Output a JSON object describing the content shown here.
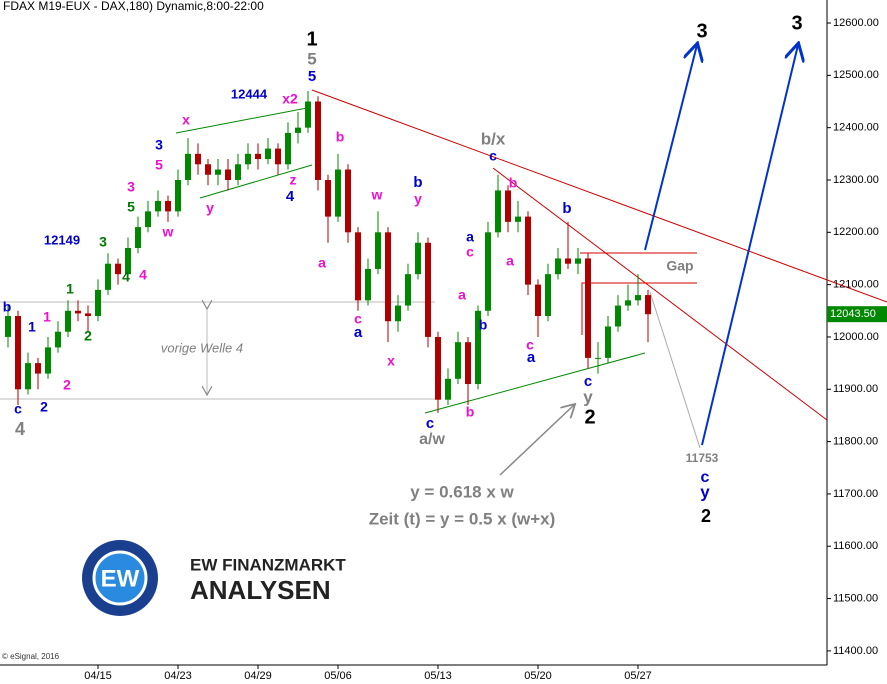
{
  "chart_data": {
    "type": "candlestick",
    "title": "FDAX M19-EUX - DAX,180) Dynamic,8:00-22:00",
    "categories": [
      null,
      null,
      null,
      null,
      null,
      null,
      null,
      null,
      null,
      "04/15",
      null,
      null,
      null,
      null,
      null,
      null,
      null,
      "04/23",
      null,
      null,
      null,
      null,
      null,
      null,
      null,
      "04/29",
      null,
      null,
      null,
      null,
      null,
      null,
      null,
      "05/06",
      null,
      null,
      null,
      null,
      null,
      null,
      null,
      null,
      null,
      "05/13",
      null,
      null,
      null,
      null,
      null,
      null,
      null,
      null,
      null,
      "05/20",
      null,
      null,
      null,
      null,
      null,
      null,
      null,
      null,
      null,
      "05/27",
      null
    ],
    "open": [
      12000,
      12040,
      11900,
      11950,
      11930,
      11980,
      12010,
      12050,
      12045,
      12040,
      12090,
      12140,
      12120,
      12170,
      12210,
      12240,
      12260,
      12240,
      12300,
      12350,
      12330,
      12310,
      12320,
      12300,
      12330,
      12350,
      12340,
      12360,
      12330,
      12390,
      12400,
      12450,
      12300,
      12230,
      12320,
      12200,
      12070,
      12130,
      12200,
      12030,
      12060,
      12120,
      12180,
      12000,
      11880,
      11920,
      11990,
      11910,
      12050,
      12200,
      12280,
      12220,
      12230,
      12100,
      12040,
      12120,
      12150,
      12140,
      12150,
      11960,
      11960,
      12020,
      12060,
      12070,
      12080
    ],
    "high": [
      12060,
      12050,
      11970,
      11960,
      12000,
      12030,
      12070,
      12070,
      12060,
      12110,
      12160,
      12150,
      12190,
      12230,
      12260,
      12280,
      12270,
      12320,
      12380,
      12370,
      12340,
      12340,
      12340,
      12350,
      12370,
      12370,
      12380,
      12370,
      12410,
      12430,
      12470,
      12460,
      12310,
      12350,
      12330,
      12210,
      12150,
      12240,
      12210,
      12080,
      12140,
      12200,
      12190,
      12010,
      11940,
      12010,
      12000,
      12060,
      12220,
      12310,
      12290,
      12260,
      12240,
      12110,
      12140,
      12170,
      12220,
      12170,
      12160,
      11990,
      12040,
      12080,
      12100,
      12120,
      12090
    ],
    "low": [
      11980,
      11870,
      11890,
      11900,
      11920,
      11970,
      12000,
      12030,
      12010,
      12030,
      12080,
      12100,
      12110,
      12160,
      12200,
      12230,
      12220,
      12230,
      12290,
      12310,
      12290,
      12290,
      12280,
      12290,
      12320,
      12320,
      12330,
      12310,
      12320,
      12370,
      12390,
      12280,
      12180,
      12220,
      12180,
      12050,
      12060,
      12120,
      11990,
      12010,
      12050,
      12110,
      11980,
      11855,
      11870,
      11910,
      11870,
      11900,
      12040,
      12190,
      12200,
      12200,
      12080,
      12000,
      12030,
      12110,
      12130,
      12120,
      11940,
      11930,
      11950,
      12010,
      12050,
      12060,
      11990
    ],
    "close": [
      12040,
      11900,
      11950,
      11930,
      11980,
      12010,
      12050,
      12045,
      12040,
      12090,
      12140,
      12120,
      12170,
      12210,
      12240,
      12260,
      12240,
      12300,
      12350,
      12330,
      12310,
      12320,
      12300,
      12330,
      12350,
      12340,
      12360,
      12330,
      12390,
      12400,
      12450,
      12300,
      12230,
      12320,
      12200,
      12070,
      12130,
      12200,
      12030,
      12060,
      12120,
      12180,
      12000,
      11880,
      11920,
      11990,
      11910,
      12050,
      12200,
      12280,
      12220,
      12230,
      12100,
      12040,
      12120,
      12150,
      12140,
      12150,
      11960,
      11960,
      12020,
      12060,
      12070,
      12080,
      12043.5
    ],
    "last_label": "12043.50",
    "up_color": "#008800",
    "down_color": "#b00000",
    "ylim": [
      11373,
      12644
    ],
    "yticks": [
      {
        "value": 11400,
        "label": "11400.00"
      },
      {
        "value": 11500,
        "label": "11500.00"
      },
      {
        "value": 11600,
        "label": "11600.00"
      },
      {
        "value": 11700,
        "label": "11700.00"
      },
      {
        "value": 11800,
        "label": "11800.00"
      },
      {
        "value": 11900,
        "label": "11900.00"
      },
      {
        "value": 12000,
        "label": "12000.00"
      },
      {
        "value": 12100,
        "label": "12100.00"
      },
      {
        "value": 12200,
        "label": "12200.00"
      },
      {
        "value": 12300,
        "label": "12300.00"
      },
      {
        "value": 12400,
        "label": "12400.00"
      },
      {
        "value": 12500,
        "label": "12500.00"
      },
      {
        "value": 12600,
        "label": "12600.00"
      }
    ],
    "annotations": [
      {
        "text": "b",
        "color": "#0000cc"
      },
      {
        "text": "c",
        "color": "#0000cc"
      },
      {
        "text": "4",
        "color": "#808080"
      },
      {
        "text": "1",
        "color": "#0000cc"
      },
      {
        "text": "1",
        "color": "#ee10cc"
      },
      {
        "text": "2",
        "color": "#0000cc"
      },
      {
        "text": "2",
        "color": "#ee10cc"
      },
      {
        "text": "1",
        "color": "#007700"
      },
      {
        "text": "2",
        "color": "#007700"
      },
      {
        "text": "12149",
        "color": "#0000cc"
      },
      {
        "text": "3",
        "color": "#007700"
      },
      {
        "text": "4",
        "color": "#007700"
      },
      {
        "text": "4",
        "color": "#ee10cc"
      },
      {
        "text": "3",
        "color": "#ee10cc"
      },
      {
        "text": "5",
        "color": "#007700"
      },
      {
        "text": "w",
        "color": "#ee10cc"
      },
      {
        "text": "3",
        "color": "#0000cc"
      },
      {
        "text": "5",
        "color": "#ee10cc"
      },
      {
        "text": "x",
        "color": "#ee10cc"
      },
      {
        "text": "y",
        "color": "#ee10cc"
      },
      {
        "text": "12444",
        "color": "#0000cc"
      },
      {
        "text": "x2",
        "color": "#ee10cc"
      },
      {
        "text": "z",
        "color": "#ee10cc"
      },
      {
        "text": "4",
        "color": "#0000cc"
      },
      {
        "text": "1",
        "color": "#000000"
      },
      {
        "text": "5",
        "color": "#808080"
      },
      {
        "text": "5",
        "color": "#0000cc"
      },
      {
        "text": "b",
        "color": "#ee10cc"
      },
      {
        "text": "a",
        "color": "#ee10cc"
      },
      {
        "text": "c",
        "color": "#ee10cc"
      },
      {
        "text": "a",
        "color": "#0000cc"
      },
      {
        "text": "w",
        "color": "#ee10cc"
      },
      {
        "text": "b",
        "color": "#0000cc"
      },
      {
        "text": "y",
        "color": "#ee10cc"
      },
      {
        "text": "x",
        "color": "#ee10cc"
      },
      {
        "text": "c",
        "color": "#0000cc"
      },
      {
        "text": "a/w",
        "color": "#808080"
      },
      {
        "text": "a",
        "color": "#0000cc"
      },
      {
        "text": "c",
        "color": "#ee10cc"
      },
      {
        "text": "a",
        "color": "#ee10cc"
      },
      {
        "text": "b",
        "color": "#0000cc"
      },
      {
        "text": "b",
        "color": "#ee10cc"
      },
      {
        "text": "b/x",
        "color": "#808080"
      },
      {
        "text": "c",
        "color": "#0000cc"
      },
      {
        "text": "b",
        "color": "#ee10cc"
      },
      {
        "text": "a",
        "color": "#ee10cc"
      },
      {
        "text": "c",
        "color": "#ee10cc"
      },
      {
        "text": "a",
        "color": "#0000cc"
      },
      {
        "text": "b",
        "color": "#0000cc"
      },
      {
        "text": "c",
        "color": "#0000cc"
      },
      {
        "text": "y",
        "color": "#808080"
      },
      {
        "text": "2",
        "color": "#000000"
      },
      {
        "text": "Gap",
        "color": "#808080"
      },
      {
        "text": "3",
        "color": "#000000"
      },
      {
        "text": "3",
        "color": "#000000"
      },
      {
        "text": "11753",
        "color": "#808080"
      },
      {
        "text": "c",
        "color": "#0000cc"
      },
      {
        "text": "y",
        "color": "#0000cc"
      },
      {
        "text": "2",
        "color": "#000000"
      },
      {
        "text": "vorige Welle 4",
        "color": "#808080"
      },
      {
        "text": "y = 0.618 x w",
        "color": "#808080"
      },
      {
        "text": "Zeit (t) = y = 0.5 x (w+x)",
        "color": "#808080"
      }
    ],
    "credit": "© eSignal, 2016"
  },
  "logo": {
    "mark": "EW",
    "line1": "EW FINANZMARKT",
    "line2": "ANALYSEN"
  }
}
